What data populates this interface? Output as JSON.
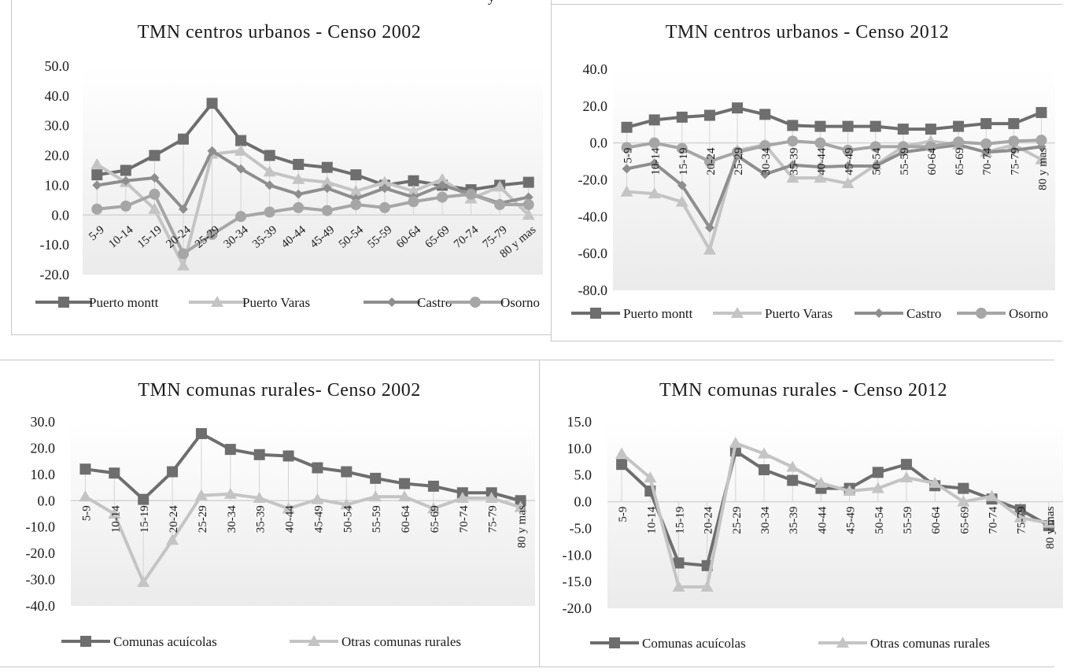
{
  "colors": {
    "puerto_montt": "#6e6e6e",
    "puerto_varas": "#c4c4c4",
    "castro": "#8e8e8e",
    "osorno": "#a6a6a6",
    "acuicolas": "#6e6e6e",
    "otras": "#c4c4c4",
    "grid": "#d4d4d4",
    "plot_bg_top": "#ffffff",
    "plot_bg_bottom": "#ebebeb"
  },
  "top_caption": "y",
  "chart_data": [
    {
      "type": "line",
      "title": "TMN centros urbanos - Censo 2002",
      "categories": [
        "5-9",
        "10-14",
        "15-19",
        "20-24",
        "25-29",
        "30-34",
        "35-39",
        "40-44",
        "45-49",
        "50-54",
        "55-59",
        "60-64",
        "65-69",
        "70-74",
        "75-79",
        "80 y mas"
      ],
      "ylim": [
        -20,
        50
      ],
      "yticks": [
        "50.0",
        "40.0",
        "30.0",
        "20.0",
        "10.0",
        "0.0",
        "-10.0",
        "-20.0"
      ],
      "series": [
        {
          "name": "Puerto montt",
          "marker": "square",
          "values": [
            13.5,
            15,
            20,
            25.5,
            37.5,
            25,
            20,
            17,
            16,
            13.5,
            10,
            11.5,
            10,
            8.5,
            10,
            11
          ]
        },
        {
          "name": "Puerto Varas",
          "marker": "triangle",
          "values": [
            17,
            11,
            2,
            -17,
            20.5,
            21.5,
            14.5,
            12,
            11,
            8,
            11,
            8,
            12,
            5.5,
            9.5,
            0
          ]
        },
        {
          "name": "Castro",
          "marker": "diamond",
          "values": [
            10,
            11.5,
            12.5,
            2,
            21.5,
            15.5,
            10,
            7,
            9,
            5.5,
            9,
            6,
            10,
            7,
            4,
            6
          ]
        },
        {
          "name": "Osorno",
          "marker": "circle",
          "values": [
            2,
            3,
            7,
            -13,
            -6.5,
            -0.5,
            1,
            2.5,
            1.5,
            3.5,
            2.5,
            4.5,
            6,
            7,
            3.5,
            3.5
          ]
        }
      ]
    },
    {
      "type": "line",
      "title": "TMN centros urbanos - Censo 2012",
      "categories": [
        "5-9",
        "10-14",
        "15-19",
        "20-24",
        "25-29",
        "30-34",
        "35-39",
        "40-44",
        "45-49",
        "50-54",
        "55-59",
        "60-64",
        "65-69",
        "70-74",
        "75-79",
        "80 y mas"
      ],
      "ylim": [
        -80,
        40
      ],
      "yticks": [
        "40.0",
        "20.0",
        "0.0",
        "-20.0",
        "-40.0",
        "-60.0",
        "-80.0"
      ],
      "series": [
        {
          "name": "Puerto montt",
          "marker": "square",
          "values": [
            8.5,
            12.5,
            14,
            15,
            19,
            15.5,
            9.5,
            9,
            9,
            9,
            7.5,
            7.5,
            9,
            10.5,
            10.5,
            16.5
          ]
        },
        {
          "name": "Puerto Varas",
          "marker": "triangle",
          "values": [
            -26.5,
            -27.5,
            -32,
            -58,
            -4,
            -1,
            -19,
            -19,
            -22,
            -12,
            -2,
            1,
            -1,
            -5,
            -1,
            -9
          ]
        },
        {
          "name": "Castro",
          "marker": "diamond",
          "values": [
            -14,
            -11,
            -23,
            -46,
            -7,
            -17,
            -12,
            -13,
            -12.5,
            -12.5,
            -5,
            -3,
            -1,
            -5,
            -4,
            -2
          ]
        },
        {
          "name": "Osorno",
          "marker": "circle",
          "values": [
            -2.5,
            0,
            -3,
            -10,
            -5,
            -1.5,
            1,
            0,
            -4,
            -2,
            -2,
            -2,
            0.5,
            -0.5,
            1,
            1.5
          ]
        }
      ]
    },
    {
      "type": "line",
      "title": "TMN comunas rurales- Censo 2002",
      "categories": [
        "5-9",
        "10-14",
        "15-19",
        "20-24",
        "25-29",
        "30-34",
        "35-39",
        "40-44",
        "45-49",
        "50-54",
        "55-59",
        "60-64",
        "65-69",
        "70-74",
        "75-79",
        "80 y mas"
      ],
      "ylim": [
        -40,
        30
      ],
      "yticks": [
        "30.0",
        "20.0",
        "10.0",
        "0.0",
        "-10.0",
        "-20.0",
        "-30.0",
        "-40.0"
      ],
      "series": [
        {
          "name": "Comunas acuícolas",
          "marker": "square",
          "values": [
            12,
            10.5,
            0.5,
            11,
            25.5,
            19.5,
            17.5,
            17,
            12.5,
            11,
            8.5,
            6.5,
            5.5,
            3,
            3,
            0
          ]
        },
        {
          "name": "Otras comunas rurales",
          "marker": "triangle",
          "values": [
            1.5,
            -5,
            -31,
            -15,
            2,
            2.5,
            1,
            -3,
            0.5,
            -1.5,
            1.5,
            1.5,
            -3,
            1,
            1,
            -2.5
          ]
        }
      ]
    },
    {
      "type": "line",
      "title": "TMN comunas rurales - Censo 2012",
      "categories": [
        "5-9",
        "10-14",
        "15-19",
        "20-24",
        "25-29",
        "30-34",
        "35-39",
        "40-44",
        "45-49",
        "50-54",
        "55-59",
        "60-64",
        "65-69",
        "70-74",
        "75-79",
        "80 y mas"
      ],
      "ylim": [
        -20,
        15
      ],
      "yticks": [
        "15.0",
        "10.0",
        "5.0",
        "0.0",
        "-5.0",
        "-10.0",
        "-15.0",
        "-20.0"
      ],
      "series": [
        {
          "name": "Comunas acuícolas",
          "marker": "square",
          "values": [
            7,
            2,
            -11.5,
            -12,
            9.5,
            6,
            4,
            2.5,
            2.5,
            5.5,
            7,
            3,
            2.5,
            0.5,
            -1.5,
            -4.5
          ]
        },
        {
          "name": "Otras comunas rurales",
          "marker": "triangle",
          "values": [
            9,
            4.5,
            -16,
            -16,
            11,
            9,
            6.5,
            3.5,
            2,
            2.5,
            4.5,
            3.5,
            0,
            1,
            -3,
            -4
          ]
        }
      ]
    }
  ]
}
